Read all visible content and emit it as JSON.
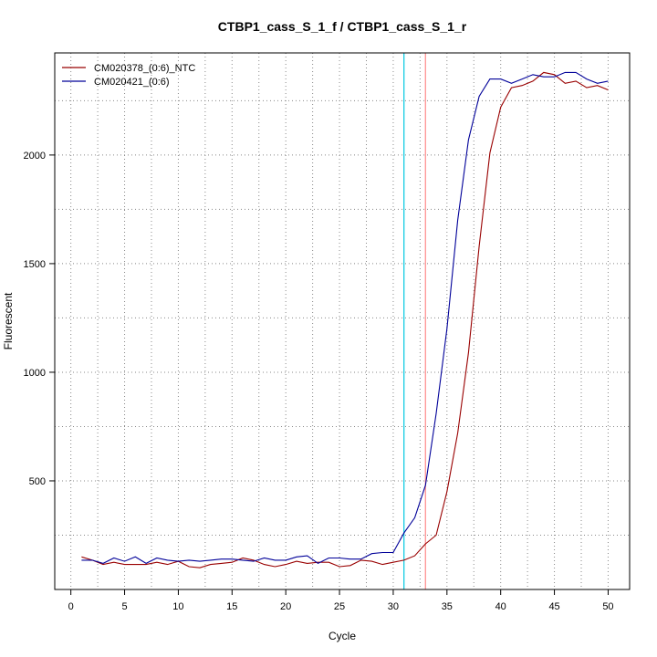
{
  "chart_data": {
    "type": "line",
    "title": "CTBP1_cass_S_1_f / CTBP1_cass_S_1_r",
    "xlabel": "Cycle",
    "ylabel": "Fluorescent",
    "xlim": [
      -1.5,
      52
    ],
    "ylim": [
      0,
      2470
    ],
    "xticks": [
      0,
      5,
      10,
      15,
      20,
      25,
      30,
      35,
      40,
      45,
      50
    ],
    "yticks": [
      500,
      1000,
      1500,
      2000
    ],
    "grid": true,
    "legend_position": "top-left",
    "series": [
      {
        "name": "CM020378_(0:6)_NTC",
        "color": "#990000",
        "x": [
          1,
          2,
          3,
          4,
          5,
          6,
          7,
          8,
          9,
          10,
          11,
          12,
          13,
          14,
          15,
          16,
          17,
          18,
          19,
          20,
          21,
          22,
          23,
          24,
          25,
          26,
          27,
          28,
          29,
          30,
          31,
          32,
          33,
          34,
          35,
          36,
          37,
          38,
          39,
          40,
          41,
          42,
          43,
          44,
          45,
          46,
          47,
          48,
          49,
          50
        ],
        "values": [
          150,
          135,
          115,
          125,
          115,
          115,
          115,
          125,
          115,
          130,
          105,
          100,
          115,
          120,
          125,
          145,
          135,
          115,
          105,
          115,
          130,
          120,
          125,
          125,
          105,
          110,
          135,
          130,
          115,
          125,
          135,
          155,
          210,
          250,
          450,
          720,
          1090,
          1580,
          2010,
          2220,
          2310,
          2320,
          2340,
          2380,
          2370,
          2330,
          2340,
          2310,
          2320,
          2300
        ]
      },
      {
        "name": "CM020421_(0:6)",
        "color": "#000099",
        "x": [
          1,
          2,
          3,
          4,
          5,
          6,
          7,
          8,
          9,
          10,
          11,
          12,
          13,
          14,
          15,
          16,
          17,
          18,
          19,
          20,
          21,
          22,
          23,
          24,
          25,
          26,
          27,
          28,
          29,
          30,
          31,
          32,
          33,
          34,
          35,
          36,
          37,
          38,
          39,
          40,
          41,
          42,
          43,
          44,
          45,
          46,
          47,
          48,
          49,
          50
        ],
        "values": [
          135,
          135,
          120,
          145,
          130,
          150,
          120,
          145,
          135,
          130,
          135,
          130,
          135,
          140,
          140,
          135,
          130,
          145,
          135,
          135,
          150,
          155,
          120,
          145,
          145,
          140,
          140,
          165,
          170,
          170,
          260,
          330,
          480,
          810,
          1200,
          1700,
          2070,
          2270,
          2350,
          2350,
          2330,
          2350,
          2370,
          2360,
          2360,
          2380,
          2380,
          2350,
          2330,
          2340
        ]
      }
    ],
    "vlines": [
      {
        "x": 31.0,
        "color": "#00c8e0"
      },
      {
        "x": 33.0,
        "color": "#ff8a8a"
      }
    ]
  }
}
